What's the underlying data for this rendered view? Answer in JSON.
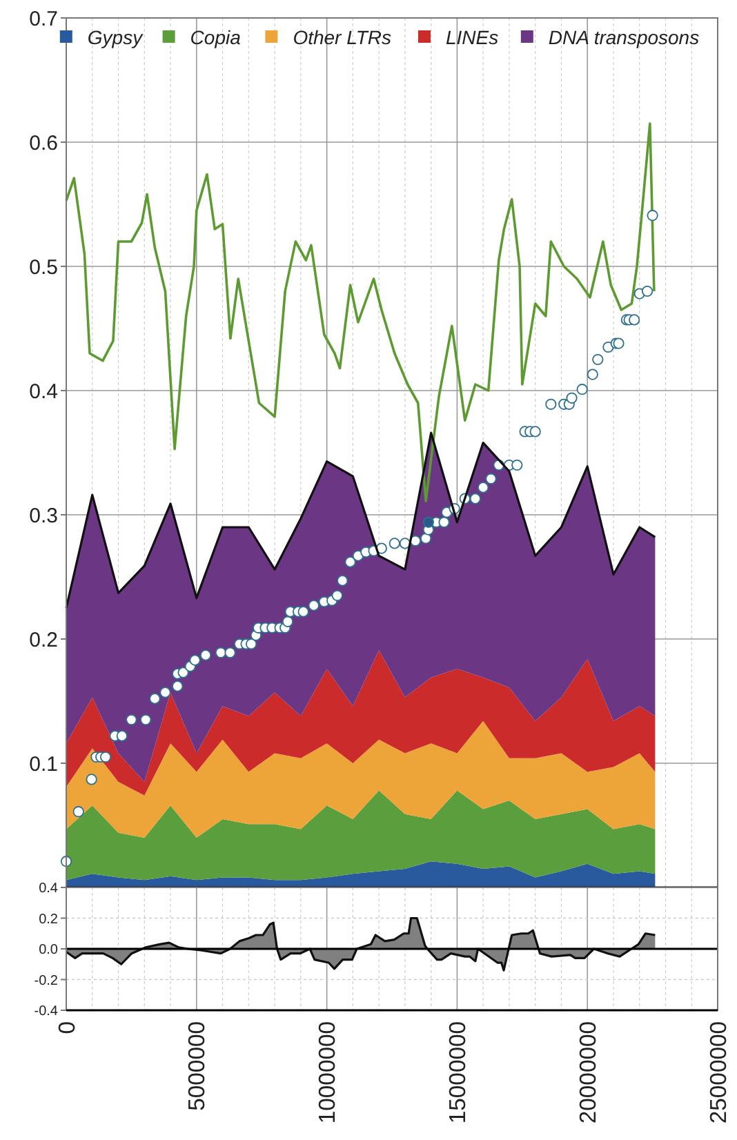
{
  "chart_data": [
    {
      "type": "area",
      "stacked": true,
      "legend": "top",
      "grid": true,
      "tick_labels": "y",
      "xlim": [
        0,
        25000000
      ],
      "ylim": [
        0,
        0.7
      ],
      "xticks": [
        0,
        {
          "value": 1000000,
          "label": null
        },
        {
          "value": 2000000,
          "label": null
        },
        {
          "value": 3000000,
          "label": null
        },
        {
          "value": 4000000,
          "label": null
        },
        5000000,
        {
          "value": 6000000,
          "label": null
        },
        {
          "value": 7000000,
          "label": null
        },
        {
          "value": 8000000,
          "label": null
        },
        {
          "value": 9000000,
          "label": null
        },
        10000000,
        {
          "value": 11000000,
          "label": null
        },
        {
          "value": 12000000,
          "label": null
        },
        {
          "value": 13000000,
          "label": null
        },
        {
          "value": 14000000,
          "label": null
        },
        15000000,
        {
          "value": 16000000,
          "label": null
        },
        {
          "value": 17000000,
          "label": null
        },
        {
          "value": 18000000,
          "label": null
        },
        {
          "value": 19000000,
          "label": null
        },
        20000000,
        {
          "value": 21000000,
          "label": null
        },
        {
          "value": 22000000,
          "label": null
        },
        {
          "value": 23000000,
          "label": null
        },
        {
          "value": 24000000,
          "label": null
        },
        25000000
      ],
      "yticks": [
        {
          "value": 0,
          "label": null
        },
        0.1,
        0.2,
        0.3,
        0.4,
        0.5,
        0.6,
        0.7
      ],
      "x": [
        0,
        1000000,
        2000000,
        3000000,
        4000000,
        5000000,
        6000000,
        7000000,
        8000000,
        9000000,
        10000000,
        11000000,
        12000000,
        13000000,
        14000000,
        15000000,
        16000000,
        17000000,
        18000000,
        19000000,
        20000000,
        21000000,
        22000000,
        22600000
      ],
      "series": [
        {
          "name": "Gypsy",
          "color": "#2a5a9e",
          "values": [
            0.006,
            0.011,
            0.008,
            0.006,
            0.009,
            0.006,
            0.008,
            0.008,
            0.006,
            0.006,
            0.008,
            0.011,
            0.013,
            0.015,
            0.021,
            0.019,
            0.015,
            0.017,
            0.008,
            0.013,
            0.019,
            0.011,
            0.013,
            0.011
          ]
        },
        {
          "name": "Copia",
          "color": "#5a9e3e",
          "values": [
            0.041,
            0.055,
            0.036,
            0.034,
            0.057,
            0.034,
            0.047,
            0.043,
            0.045,
            0.041,
            0.058,
            0.044,
            0.065,
            0.044,
            0.034,
            0.059,
            0.048,
            0.053,
            0.047,
            0.046,
            0.044,
            0.036,
            0.038,
            0.036
          ]
        },
        {
          "name": "Other LTRs",
          "color": "#eda53a",
          "values": [
            0.034,
            0.046,
            0.041,
            0.034,
            0.05,
            0.053,
            0.064,
            0.042,
            0.057,
            0.057,
            0.05,
            0.045,
            0.041,
            0.049,
            0.061,
            0.03,
            0.071,
            0.034,
            0.049,
            0.049,
            0.03,
            0.05,
            0.057,
            0.046
          ]
        },
        {
          "name": "LINEs",
          "color": "#cc2b2b",
          "values": [
            0.035,
            0.041,
            0.023,
            0.011,
            0.041,
            0.015,
            0.027,
            0.045,
            0.049,
            0.034,
            0.06,
            0.046,
            0.072,
            0.045,
            0.053,
            0.068,
            0.035,
            0.057,
            0.03,
            0.045,
            0.091,
            0.037,
            0.038,
            0.045
          ]
        },
        {
          "name": "DNA transposons",
          "color": "#6b3784",
          "values": [
            0.109,
            0.163,
            0.129,
            0.174,
            0.152,
            0.125,
            0.144,
            0.152,
            0.099,
            0.159,
            0.167,
            0.185,
            0.076,
            0.103,
            0.197,
            0.118,
            0.189,
            0.174,
            0.133,
            0.137,
            0.155,
            0.118,
            0.144,
            0.144
          ]
        },
        {
          "type": "line",
          "color": "#5e9a32",
          "x": [
            0,
            300000,
            700000,
            900000,
            1400000,
            1800000,
            2000000,
            2500000,
            2900000,
            3100000,
            3400000,
            3800000,
            4160000,
            4600000,
            4900000,
            5000000,
            5400000,
            5700000,
            6000000,
            6300000,
            6600000,
            7000000,
            7400000,
            8000000,
            8400000,
            8800000,
            9200000,
            9400000,
            9900000,
            10300000,
            10500000,
            10900000,
            11200000,
            11800000,
            12100000,
            12600000,
            13100000,
            13500000,
            13800000,
            14300000,
            14800000,
            15300000,
            15700000,
            16200000,
            16600000,
            16800000,
            17100000,
            17400000,
            17500000,
            18000000,
            18400000,
            18600000,
            19100000,
            19600000,
            20100000,
            20600000,
            20900000,
            21300000,
            21700000,
            21900000,
            22100000,
            22400000,
            22560000
          ],
          "values": [
            0.553,
            0.571,
            0.51,
            0.43,
            0.424,
            0.44,
            0.52,
            0.52,
            0.535,
            0.558,
            0.515,
            0.48,
            0.353,
            0.46,
            0.5,
            0.545,
            0.574,
            0.53,
            0.534,
            0.442,
            0.49,
            0.44,
            0.39,
            0.379,
            0.48,
            0.52,
            0.505,
            0.517,
            0.445,
            0.43,
            0.418,
            0.485,
            0.455,
            0.49,
            0.465,
            0.43,
            0.405,
            0.39,
            0.311,
            0.395,
            0.452,
            0.376,
            0.405,
            0.4,
            0.505,
            0.53,
            0.554,
            0.5,
            0.405,
            0.47,
            0.46,
            0.52,
            0.5,
            0.49,
            0.475,
            0.52,
            0.485,
            0.465,
            0.47,
            0.5,
            0.545,
            0.615,
            0.48
          ]
        },
        {
          "type": "scatter",
          "color": "#ffffff",
          "x": [
            0,
            470000,
            970000,
            1150000,
            1330000,
            1510000,
            1870000,
            2140000,
            2500000,
            3050000,
            3400000,
            3800000,
            4270000,
            4270000,
            4490000,
            4760000,
            4940000,
            5350000,
            5930000,
            6290000,
            6650000,
            6900000,
            7100000,
            7280000,
            7370000,
            7640000,
            7900000,
            8200000,
            8400000,
            8500000,
            8600000,
            8900000,
            9100000,
            9500000,
            9900000,
            10200000,
            10400000,
            10600000,
            10900000,
            11200000,
            11500000,
            11800000,
            12100000,
            12600000,
            13000000,
            13400000,
            13800000,
            13900000,
            14200000,
            14500000,
            14600000,
            14900000,
            15300000,
            15700000,
            16000000,
            16300000,
            16600000,
            17000000,
            17300000,
            17600000,
            17800000,
            18000000,
            18600000,
            19100000,
            19300000,
            19400000,
            19800000,
            20200000,
            20400000,
            20800000,
            21100000,
            21200000,
            21500000,
            21600000,
            21800000,
            22000000,
            22300000,
            22500000
          ],
          "values": [
            0.021,
            0.061,
            0.087,
            0.105,
            0.105,
            0.105,
            0.122,
            0.122,
            0.135,
            0.135,
            0.152,
            0.157,
            0.162,
            0.172,
            0.173,
            0.178,
            0.183,
            0.187,
            0.189,
            0.189,
            0.196,
            0.196,
            0.196,
            0.203,
            0.209,
            0.209,
            0.209,
            0.209,
            0.209,
            0.214,
            0.222,
            0.222,
            0.222,
            0.227,
            0.23,
            0.231,
            0.235,
            0.247,
            0.262,
            0.267,
            0.27,
            0.271,
            0.273,
            0.277,
            0.277,
            0.279,
            0.281,
            0.288,
            0.294,
            0.294,
            0.302,
            0.305,
            0.313,
            0.313,
            0.322,
            0.329,
            0.34,
            0.34,
            0.34,
            0.367,
            0.367,
            0.367,
            0.389,
            0.389,
            0.389,
            0.394,
            0.401,
            0.413,
            0.425,
            0.435,
            0.438,
            0.438,
            0.457,
            0.457,
            0.457,
            0.478,
            0.48,
            0.541
          ]
        },
        {
          "type": "scatter",
          "color": "#2a5a8a",
          "x": [
            13900000
          ],
          "values": [
            0.294
          ]
        }
      ]
    },
    {
      "type": "area",
      "color": "#808080",
      "grid": true,
      "xlim": [
        0,
        25000000
      ],
      "ylim": [
        -0.4,
        0.4
      ],
      "xticks": [
        0,
        {
          "value": 1000000,
          "label": null
        },
        {
          "value": 2000000,
          "label": null
        },
        {
          "value": 3000000,
          "label": null
        },
        {
          "value": 4000000,
          "label": null
        },
        5000000,
        {
          "value": 6000000,
          "label": null
        },
        {
          "value": 7000000,
          "label": null
        },
        {
          "value": 8000000,
          "label": null
        },
        {
          "value": 9000000,
          "label": null
        },
        10000000,
        {
          "value": 11000000,
          "label": null
        },
        {
          "value": 12000000,
          "label": null
        },
        {
          "value": 13000000,
          "label": null
        },
        {
          "value": 14000000,
          "label": null
        },
        15000000,
        {
          "value": 16000000,
          "label": null
        },
        {
          "value": 17000000,
          "label": null
        },
        {
          "value": 18000000,
          "label": null
        },
        {
          "value": 19000000,
          "label": null
        },
        20000000,
        {
          "value": 21000000,
          "label": null
        },
        {
          "value": 22000000,
          "label": null
        },
        {
          "value": 23000000,
          "label": null
        },
        {
          "value": 24000000,
          "label": null
        },
        25000000
      ],
      "yticks": [
        -0.4,
        -0.2,
        {
          "value": 0,
          "label": "0.0"
        },
        0.2,
        0.4
      ],
      "ref_lines": [
        {
          "axis": "y",
          "value": 0,
          "color": "#000000"
        }
      ],
      "x": [
        0,
        340000,
        610000,
        1060000,
        1420000,
        1780000,
        2110000,
        2510000,
        3050000,
        3590000,
        3950000,
        4310000,
        4670000,
        5200000,
        5930000,
        6290000,
        6650000,
        7010000,
        7280000,
        7550000,
        7820000,
        7950000,
        8090000,
        8230000,
        8610000,
        8970000,
        9350000,
        9530000,
        10070000,
        10290000,
        10610000,
        10970000,
        11150000,
        11330000,
        11690000,
        11870000,
        12230000,
        12590000,
        12950000,
        13140000,
        13230000,
        13460000,
        13770000,
        13860000,
        14230000,
        14400000,
        14760000,
        15300000,
        15480000,
        15700000,
        15800000,
        16550000,
        16700000,
        16790000,
        17100000,
        17460000,
        17730000,
        17910000,
        18180000,
        18630000,
        19350000,
        19530000,
        19890000,
        20250000,
        20790000,
        21240000,
        21690000,
        21960000,
        22230000,
        22600000
      ],
      "values": [
        -0.02,
        -0.06,
        -0.03,
        -0.03,
        -0.03,
        -0.06,
        -0.1,
        -0.03,
        0.01,
        0.03,
        0.04,
        0.01,
        0,
        -0.01,
        -0.03,
        0,
        0.05,
        0.07,
        0.09,
        0.09,
        0.16,
        0.17,
        0,
        -0.07,
        -0.03,
        -0.03,
        0,
        -0.07,
        -0.09,
        -0.13,
        -0.07,
        -0.07,
        0,
        0.01,
        0.03,
        0.09,
        0.05,
        0.06,
        0.1,
        0.1,
        0.2,
        0.2,
        0.02,
        0,
        -0.07,
        -0.07,
        -0.03,
        -0.05,
        -0.05,
        -0.08,
        0,
        -0.09,
        -0.09,
        -0.14,
        0.09,
        0.1,
        0.1,
        0.12,
        -0.03,
        -0.05,
        -0.04,
        -0.06,
        -0.06,
        0,
        -0.03,
        -0.05,
        0,
        0.03,
        0.1,
        0.09
      ]
    }
  ]
}
